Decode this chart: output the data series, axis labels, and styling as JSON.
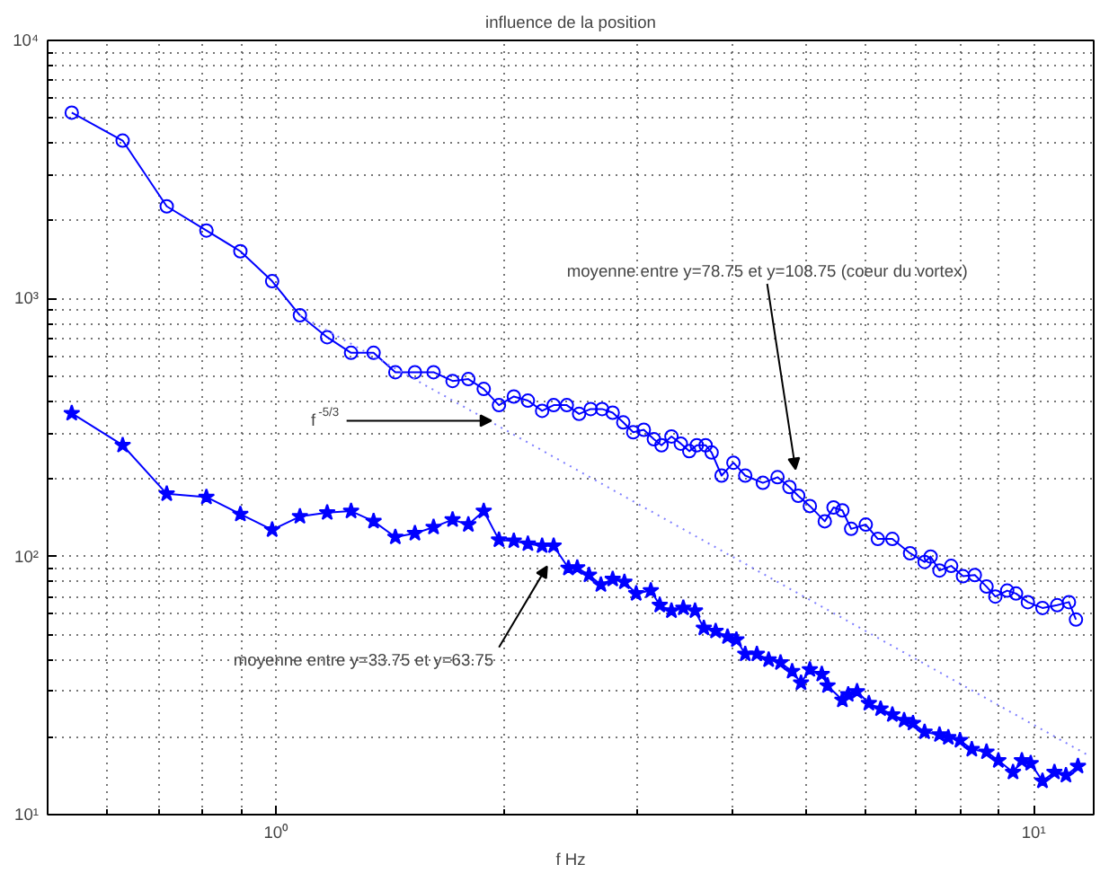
{
  "chart_data": {
    "type": "line",
    "title": "influence de la position",
    "xlabel": "f Hz",
    "log": "xy",
    "grid": true,
    "xlim": [
      0.5,
      12
    ],
    "ylim": [
      10,
      10000
    ],
    "xticks": [
      {
        "value": 1,
        "label": "10⁰"
      },
      {
        "value": 10,
        "label": "10¹"
      }
    ],
    "yticks": [
      {
        "value": 10,
        "label": "10¹"
      },
      {
        "value": 100,
        "label": "10²"
      },
      {
        "value": 1000,
        "label": "10³"
      },
      {
        "value": 10000,
        "label": "10⁴"
      }
    ],
    "series": [
      {
        "color": "#0000ff",
        "marker": "circle",
        "line_style": "solid",
        "x": [
          0.538,
          0.628,
          0.718,
          0.81,
          0.898,
          0.989,
          1.076,
          1.169,
          1.257,
          1.346,
          1.438,
          1.526,
          1.615,
          1.711,
          1.795,
          1.881,
          1.97,
          2.061,
          2.151,
          2.246,
          2.326,
          2.421,
          2.513,
          2.603,
          2.695,
          2.783,
          2.874,
          2.962,
          3.059,
          3.154,
          3.228,
          3.327,
          3.423,
          3.512,
          3.593,
          3.691,
          3.759,
          3.874,
          4.016,
          4.163,
          4.392,
          4.592,
          4.761,
          4.89,
          5.066,
          5.301,
          5.444,
          5.592,
          5.743,
          6.004,
          6.228,
          6.509,
          6.869,
          7.179,
          7.312,
          7.511,
          7.782,
          8.067,
          8.362,
          8.665,
          8.9,
          9.226,
          9.478,
          9.824,
          10.27,
          10.74,
          11.13,
          11.37
        ],
        "values": [
          5250,
          4090,
          2275,
          1834,
          1524,
          1167,
          861,
          708,
          616,
          616,
          518,
          518,
          518,
          479,
          487,
          446,
          386,
          417,
          402,
          367,
          386,
          386,
          357,
          373,
          373,
          361,
          331,
          303,
          310,
          285,
          270,
          292,
          274,
          256,
          270,
          270,
          253,
          206,
          231,
          206,
          193,
          203,
          186,
          172,
          157,
          137,
          155,
          151,
          128,
          133,
          117,
          117,
          103,
          95.3,
          100,
          88.3,
          92,
          83.9,
          84.8,
          76.5,
          70,
          73.8,
          71.9,
          66.6,
          63.2,
          64.8,
          66.6,
          57
        ]
      },
      {
        "color": "#0000ff",
        "marker": "star",
        "line_style": "solid",
        "x": [
          0.538,
          0.628,
          0.718,
          0.81,
          0.898,
          0.989,
          1.076,
          1.169,
          1.257,
          1.346,
          1.438,
          1.526,
          1.615,
          1.711,
          1.795,
          1.881,
          1.97,
          2.061,
          2.151,
          2.246,
          2.326,
          2.433,
          2.499,
          2.59,
          2.685,
          2.783,
          2.884,
          2.989,
          3.125,
          3.211,
          3.327,
          3.449,
          3.574,
          3.671,
          3.805,
          3.945,
          4.053,
          4.163,
          4.313,
          4.47,
          4.634,
          4.801,
          4.932,
          5.066,
          5.253,
          5.346,
          5.592,
          5.692,
          5.847,
          6.061,
          6.281,
          6.509,
          6.746,
          6.93,
          7.179,
          7.511,
          7.715,
          7.994,
          8.286,
          8.665,
          8.982,
          9.391,
          9.647,
          9.91,
          10.27,
          10.65,
          11.03,
          11.44
        ],
        "values": [
          359,
          270,
          175,
          170,
          146,
          127,
          143,
          148,
          150,
          137,
          119,
          123,
          130,
          139,
          133,
          150,
          116,
          115,
          112,
          110,
          110,
          90.2,
          90.6,
          84.8,
          77.8,
          81.7,
          79.7,
          71.9,
          73.8,
          64.8,
          61.6,
          63.2,
          61.6,
          52.8,
          51.4,
          48.9,
          47.6,
          41.9,
          41.9,
          39.8,
          38.8,
          35.9,
          32.4,
          36.5,
          35.0,
          31.6,
          27.8,
          29.2,
          30.0,
          27.0,
          25.7,
          24.4,
          23.2,
          22.6,
          20.9,
          20.4,
          19.9,
          19.4,
          17.9,
          17.5,
          16.2,
          14.6,
          16.2,
          15.8,
          13.5,
          14.6,
          14.2,
          15.4
        ]
      },
      {
        "color": "#7f7fff",
        "marker": "none",
        "line_style": "dotted",
        "x": [
          1.076,
          11.75
        ],
        "values": [
          861,
          17.1
        ]
      }
    ],
    "annotations": [
      "moyenne entre y=78.75 et y=108.75 (coeur du vortex)",
      {
        "text": "f$^{-5/3}$",
        "x": 1.925,
        "y": 336
      },
      "moyenne entre y=33.75 et y=63.75"
    ]
  }
}
